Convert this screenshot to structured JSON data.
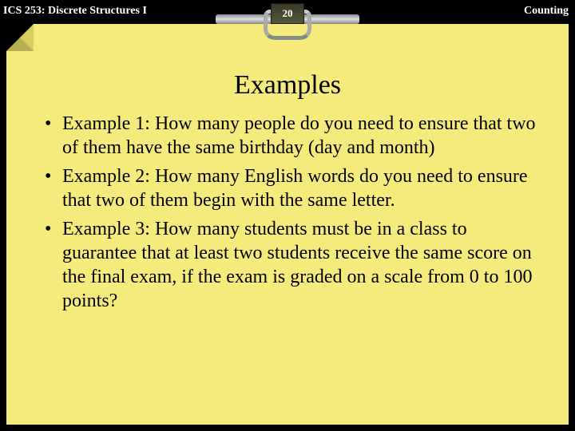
{
  "header": {
    "left": "ICS 253: Discrete Structures I",
    "right": "Counting",
    "slide_number": "20"
  },
  "title": "Examples",
  "bullets": [
    "Example 1: How many people do you need to ensure that two of them have the same birthday (day and month)",
    "Example 2: How many English words do you need to ensure that two of them begin with the same letter.",
    "Example 3: How many students must be in a class to guarantee that at least two students receive the same score on the final exam, if the exam is graded on a scale from 0 to 100 points?"
  ],
  "colors": {
    "slide_bg": "#f4eb7c",
    "page_bg": "#000000",
    "text": "#000000",
    "header_text": "#ffffff"
  }
}
